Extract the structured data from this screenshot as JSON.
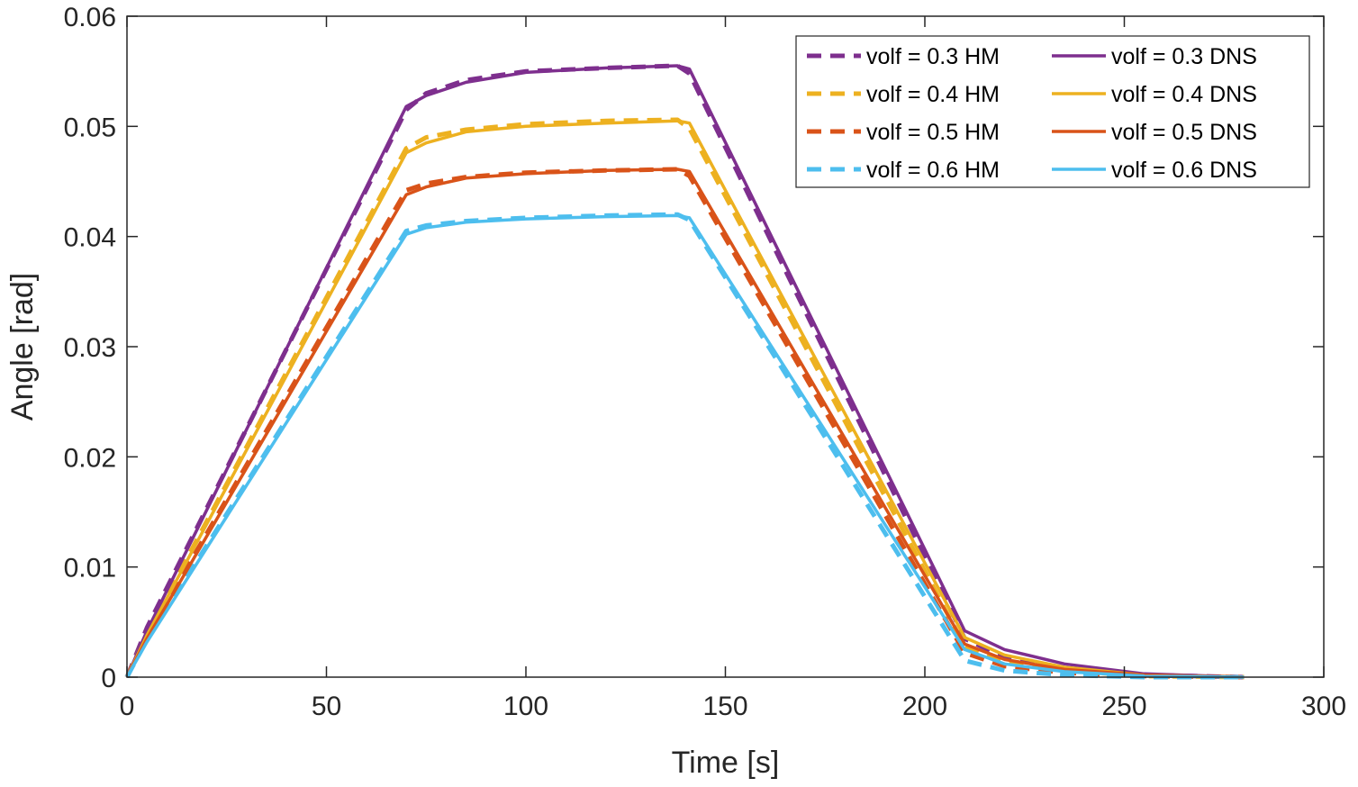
{
  "chart_data": {
    "type": "line",
    "title": "",
    "xlabel": "Time [s]",
    "ylabel": "Angle [rad]",
    "xlim": [
      0,
      300
    ],
    "ylim": [
      0,
      0.06
    ],
    "xticks": [
      0,
      50,
      100,
      150,
      200,
      250,
      300
    ],
    "xtick_labels": [
      "0",
      "50",
      "100",
      "150",
      "200",
      "250",
      "300"
    ],
    "yticks": [
      0,
      0.01,
      0.02,
      0.03,
      0.04,
      0.05,
      0.06
    ],
    "ytick_labels": [
      "0",
      "0.01",
      "0.02",
      "0.03",
      "0.04",
      "0.05",
      "0.06"
    ],
    "grid": false,
    "legend_position": "top-right",
    "series": [
      {
        "name": "volf = 0.3 HM",
        "style": "dashed",
        "color": "#7E2F8E",
        "x": [
          0,
          5,
          70,
          75,
          85,
          100,
          120,
          138,
          141,
          210,
          220,
          235,
          255,
          280
        ],
        "y": [
          0,
          0.0045,
          0.0515,
          0.053,
          0.0542,
          0.055,
          0.0553,
          0.0555,
          0.0548,
          0.0035,
          0.0018,
          0.0008,
          0.0002,
          0
        ]
      },
      {
        "name": "volf = 0.4 HM",
        "style": "dashed",
        "color": "#EDB120",
        "x": [
          0,
          5,
          70,
          75,
          85,
          100,
          120,
          138,
          141,
          210,
          220,
          235,
          255,
          280
        ],
        "y": [
          0,
          0.004,
          0.048,
          0.049,
          0.0497,
          0.0502,
          0.0505,
          0.0506,
          0.0498,
          0.0028,
          0.0014,
          0.0006,
          0.0001,
          0
        ]
      },
      {
        "name": "volf = 0.5 HM",
        "style": "dashed",
        "color": "#D95319",
        "x": [
          0,
          5,
          70,
          75,
          85,
          100,
          120,
          138,
          141,
          210,
          220,
          235,
          255,
          280
        ],
        "y": [
          0,
          0.0037,
          0.0442,
          0.0448,
          0.0454,
          0.0458,
          0.046,
          0.0461,
          0.0455,
          0.0022,
          0.001,
          0.0004,
          0.0001,
          0
        ]
      },
      {
        "name": "volf = 0.6 HM",
        "style": "dashed",
        "color": "#4DBEEE",
        "x": [
          0,
          5,
          70,
          75,
          85,
          100,
          120,
          138,
          141,
          210,
          220,
          235,
          255,
          280
        ],
        "y": [
          0,
          0.0034,
          0.0405,
          0.041,
          0.0414,
          0.0417,
          0.0419,
          0.042,
          0.0415,
          0.0015,
          0.0006,
          0.0002,
          0,
          0
        ]
      },
      {
        "name": "volf = 0.3 DNS",
        "style": "solid",
        "color": "#7E2F8E",
        "x": [
          0,
          5,
          70,
          75,
          85,
          100,
          120,
          138,
          141,
          210,
          220,
          235,
          255,
          280
        ],
        "y": [
          0,
          0.0042,
          0.0518,
          0.0528,
          0.054,
          0.0549,
          0.0553,
          0.0555,
          0.0552,
          0.0042,
          0.0025,
          0.0012,
          0.0003,
          0
        ]
      },
      {
        "name": "volf = 0.4 DNS",
        "style": "solid",
        "color": "#EDB120",
        "x": [
          0,
          5,
          70,
          75,
          85,
          100,
          120,
          138,
          141,
          210,
          220,
          235,
          255,
          280
        ],
        "y": [
          0,
          0.0038,
          0.0476,
          0.0485,
          0.0495,
          0.05,
          0.0503,
          0.0505,
          0.0503,
          0.0036,
          0.002,
          0.0009,
          0.0002,
          0
        ]
      },
      {
        "name": "volf = 0.5 DNS",
        "style": "solid",
        "color": "#D95319",
        "x": [
          0,
          5,
          70,
          75,
          85,
          100,
          120,
          138,
          141,
          210,
          220,
          235,
          255,
          280
        ],
        "y": [
          0,
          0.0035,
          0.0438,
          0.0445,
          0.0453,
          0.0457,
          0.046,
          0.0461,
          0.0459,
          0.003,
          0.0016,
          0.0007,
          0.0002,
          0
        ]
      },
      {
        "name": "volf = 0.6 DNS",
        "style": "solid",
        "color": "#4DBEEE",
        "x": [
          0,
          5,
          70,
          75,
          85,
          100,
          120,
          138,
          141,
          210,
          220,
          235,
          255,
          280
        ],
        "y": [
          0,
          0.0032,
          0.0402,
          0.0408,
          0.0413,
          0.0416,
          0.0418,
          0.0419,
          0.0417,
          0.0025,
          0.0012,
          0.0005,
          0.0001,
          0
        ]
      }
    ],
    "legend": [
      {
        "label": "volf = 0.3 HM",
        "style": "dashed",
        "color": "#7E2F8E"
      },
      {
        "label": "volf = 0.3 DNS",
        "style": "solid",
        "color": "#7E2F8E"
      },
      {
        "label": "volf = 0.4 HM",
        "style": "dashed",
        "color": "#EDB120"
      },
      {
        "label": "volf = 0.4 DNS",
        "style": "solid",
        "color": "#EDB120"
      },
      {
        "label": "volf = 0.5 HM",
        "style": "dashed",
        "color": "#D95319"
      },
      {
        "label": "volf = 0.5 DNS",
        "style": "solid",
        "color": "#D95319"
      },
      {
        "label": "volf = 0.6 HM",
        "style": "dashed",
        "color": "#4DBEEE"
      },
      {
        "label": "volf = 0.6 DNS",
        "style": "solid",
        "color": "#4DBEEE"
      }
    ]
  }
}
